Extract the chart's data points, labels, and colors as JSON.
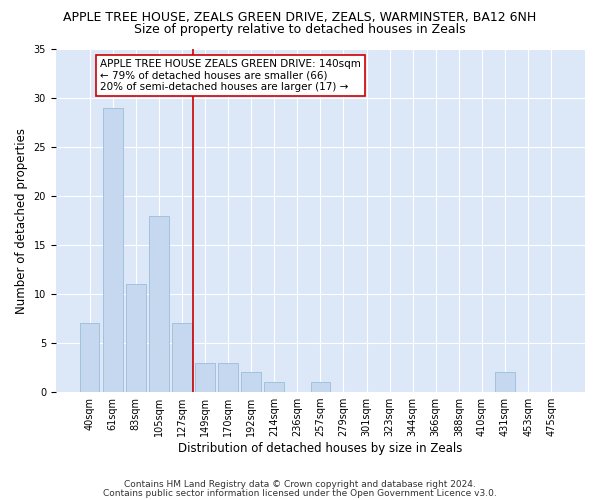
{
  "title": "APPLE TREE HOUSE, ZEALS GREEN DRIVE, ZEALS, WARMINSTER, BA12 6NH",
  "subtitle": "Size of property relative to detached houses in Zeals",
  "xlabel": "Distribution of detached houses by size in Zeals",
  "ylabel": "Number of detached properties",
  "categories": [
    "40sqm",
    "61sqm",
    "83sqm",
    "105sqm",
    "127sqm",
    "149sqm",
    "170sqm",
    "192sqm",
    "214sqm",
    "236sqm",
    "257sqm",
    "279sqm",
    "301sqm",
    "323sqm",
    "344sqm",
    "366sqm",
    "388sqm",
    "410sqm",
    "431sqm",
    "453sqm",
    "475sqm"
  ],
  "values": [
    7,
    29,
    11,
    18,
    7,
    3,
    3,
    2,
    1,
    0,
    1,
    0,
    0,
    0,
    0,
    0,
    0,
    0,
    2,
    0,
    0
  ],
  "bar_color": "#c5d8f0",
  "bar_edge_color": "#9bbdd8",
  "vline_x": 4.5,
  "vline_color": "#cc0000",
  "ylim": [
    0,
    35
  ],
  "yticks": [
    0,
    5,
    10,
    15,
    20,
    25,
    30,
    35
  ],
  "annotation_box_text": "APPLE TREE HOUSE ZEALS GREEN DRIVE: 140sqm\n← 79% of detached houses are smaller (66)\n20% of semi-detached houses are larger (17) →",
  "footer1": "Contains HM Land Registry data © Crown copyright and database right 2024.",
  "footer2": "Contains public sector information licensed under the Open Government Licence v3.0.",
  "background_color": "#dce8f8",
  "plot_bg_color": "#dce8f8",
  "title_fontsize": 9,
  "subtitle_fontsize": 9,
  "axis_label_fontsize": 8.5,
  "tick_fontsize": 7,
  "annotation_fontsize": 7.5,
  "footer_fontsize": 6.5
}
